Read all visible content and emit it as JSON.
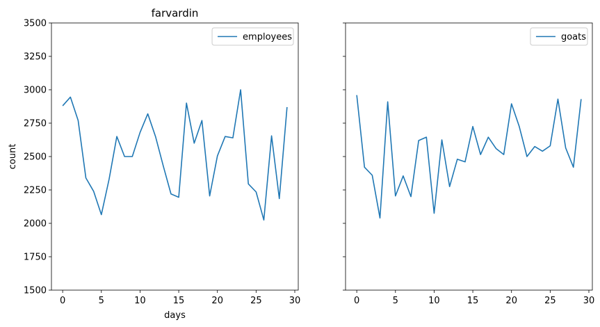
{
  "chart_data": [
    {
      "type": "line",
      "title": "farvardin",
      "xlabel": "days",
      "ylabel": "count",
      "xlim": [
        -1.45,
        30.45
      ],
      "ylim": [
        1500,
        3500
      ],
      "xticks": [
        0,
        5,
        10,
        15,
        20,
        25,
        30
      ],
      "yticks": [
        1500,
        1750,
        2000,
        2250,
        2500,
        2750,
        3000,
        3250,
        3500
      ],
      "legend_position": "top-right",
      "color": "#1f77b4",
      "series": [
        {
          "name": "employees",
          "x": [
            0,
            1,
            2,
            3,
            4,
            5,
            6,
            7,
            8,
            9,
            10,
            11,
            12,
            13,
            14,
            15,
            16,
            17,
            18,
            19,
            20,
            21,
            22,
            23,
            24,
            25,
            26,
            27,
            28,
            29
          ],
          "values": [
            2880,
            2945,
            2770,
            2340,
            2240,
            2065,
            2330,
            2650,
            2500,
            2500,
            2680,
            2820,
            2650,
            2430,
            2220,
            2195,
            2900,
            2600,
            2770,
            2205,
            2505,
            2650,
            2640,
            3000,
            2295,
            2235,
            2025,
            2655,
            2185,
            2870
          ]
        }
      ]
    },
    {
      "type": "line",
      "title": "",
      "xlabel": "",
      "ylabel": "",
      "xlim": [
        -1.45,
        30.45
      ],
      "ylim": [
        1500,
        3500
      ],
      "xticks": [
        0,
        5,
        10,
        15,
        20,
        25,
        30
      ],
      "yticks": [
        1500,
        1750,
        2000,
        2250,
        2500,
        2750,
        3000,
        3250,
        3500
      ],
      "shared_y": true,
      "legend_position": "top-right",
      "color": "#1f77b4",
      "series": [
        {
          "name": "goats",
          "x": [
            0,
            1,
            2,
            3,
            4,
            5,
            6,
            7,
            8,
            9,
            10,
            11,
            12,
            13,
            14,
            15,
            16,
            17,
            18,
            19,
            20,
            21,
            22,
            23,
            24,
            25,
            26,
            27,
            28,
            29
          ],
          "values": [
            2960,
            2420,
            2360,
            2040,
            2910,
            2205,
            2355,
            2200,
            2620,
            2645,
            2075,
            2625,
            2275,
            2480,
            2460,
            2725,
            2515,
            2645,
            2560,
            2515,
            2895,
            2725,
            2500,
            2575,
            2540,
            2580,
            2930,
            2565,
            2420,
            2930
          ]
        }
      ]
    }
  ]
}
